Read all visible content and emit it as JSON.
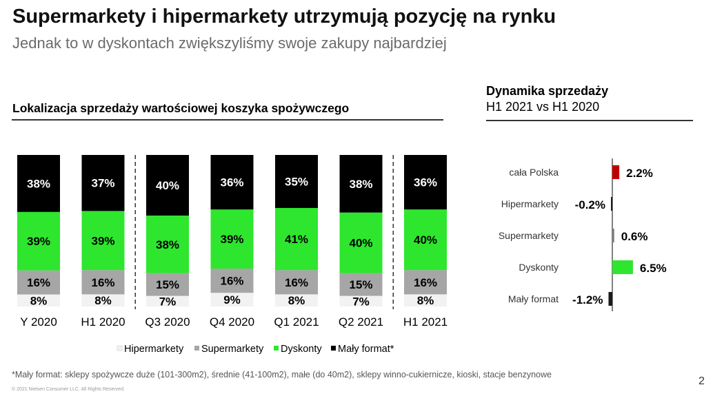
{
  "title": "Supermarkety i hipermarkety utrzymują pozycję na rynku",
  "subtitle": "Jednak to w dyskontach zwiększyliśmy swoje zakupy najbardziej",
  "left_title": "Lokalizacja sprzedaży wartościowej koszyka spożywczego",
  "right_title": "Dynamika sprzedaży",
  "right_subtitle": "H1 2021 vs H1 2020",
  "footnote": "*Mały format: sklepy spożywcze duże (101-300m2), średnie (41-100m2), małe (do 40m2), sklepy winno-cukiernicze, kioski, stacje benzynowe",
  "copyright": "© 2021 Nielsen Consumer LLC. All Rights Reserved.",
  "page_number": "2",
  "colors": {
    "Hipermarkety": "#f2f2f2",
    "Supermarkety": "#a6a6a6",
    "Dyskonty": "#2ee62e",
    "Mały format*": "#000000",
    "positive": "#c00000",
    "negative": "#1a1a1a"
  },
  "chart_data": [
    {
      "type": "bar",
      "stacked": true,
      "normalized_percent": true,
      "categories": [
        "Y 2020",
        "H1 2020",
        "Q3 2020",
        "Q4 2020",
        "Q1 2021",
        "Q2 2021",
        "H1 2021"
      ],
      "series": [
        {
          "name": "Hipermarkety",
          "values": [
            8,
            8,
            7,
            9,
            8,
            7,
            8
          ],
          "labels": [
            "8%",
            "8%",
            "7%",
            "9%",
            "8%",
            "7%",
            "8%"
          ]
        },
        {
          "name": "Supermarkety",
          "values": [
            16,
            16,
            15,
            16,
            16,
            15,
            16
          ],
          "labels": [
            "16%",
            "16%",
            "15%",
            "16%",
            "16%",
            "15%",
            "16%"
          ]
        },
        {
          "name": "Dyskonty",
          "values": [
            39,
            39,
            38,
            39,
            41,
            40,
            40
          ],
          "labels": [
            "39%",
            "39%",
            "38%",
            "39%",
            "41%",
            "40%",
            "40%"
          ]
        },
        {
          "name": "Mały format*",
          "values": [
            38,
            37,
            40,
            36,
            35,
            38,
            36
          ],
          "labels": [
            "38%",
            "37%",
            "40%",
            "36%",
            "35%",
            "38%",
            "36%"
          ]
        }
      ],
      "legend": [
        "Hipermarkety",
        "Supermarkety",
        "Dyskonty",
        "Mały format*"
      ],
      "legend_position": "bottom",
      "dashed_separators_after": [
        "H1 2020",
        "Q2 2021"
      ]
    },
    {
      "type": "bar",
      "orientation": "horizontal",
      "categories": [
        "cała Polska",
        "Hipermarkety",
        "Supermarkety",
        "Dyskonty",
        "Mały format"
      ],
      "values": [
        2.2,
        -0.2,
        0.6,
        6.5,
        -1.2
      ],
      "labels": [
        "2.2%",
        "-0.2%",
        "0.6%",
        "6.5%",
        "-1.2%"
      ],
      "bar_colors": [
        "#c00000",
        "#1a1a1a",
        "#7f7f7f",
        "#2ee62e",
        "#1a1a1a"
      ]
    }
  ]
}
